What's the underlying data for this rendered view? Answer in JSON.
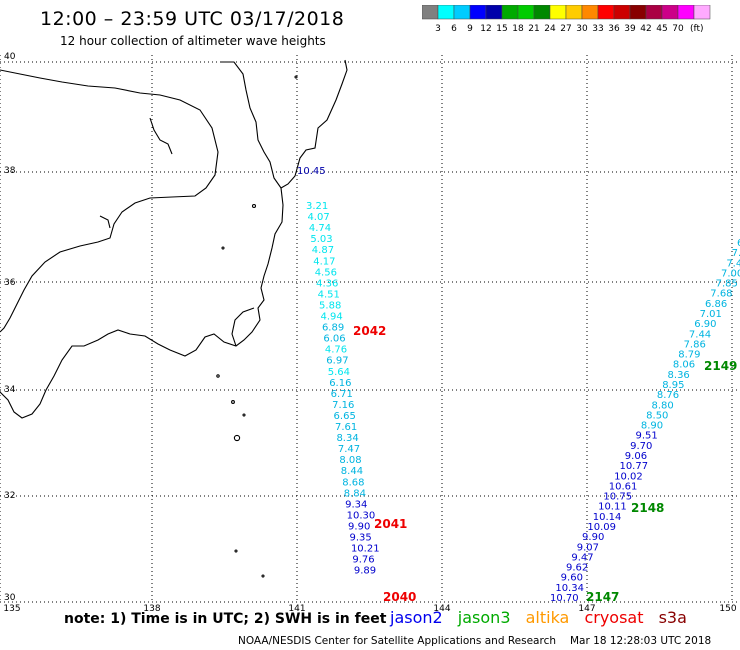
{
  "header": {
    "title": "12:00 – 23:59 UTC 03/17/2018",
    "subtitle": "12 hour collection of altimeter wave heights"
  },
  "colorbar": {
    "swatches": [
      "#808080",
      "#00ffff",
      "#00ccff",
      "#0000ff",
      "#0000aa",
      "#00aa00",
      "#00cc00",
      "#008800",
      "#ffff00",
      "#ffcc00",
      "#ff8800",
      "#ff0000",
      "#cc0000",
      "#880000",
      "#aa0044",
      "#cc0088",
      "#ff00ff",
      "#ffaaff"
    ],
    "ticks": [
      "3",
      "6",
      "9",
      "12",
      "15",
      "18",
      "21",
      "24",
      "27",
      "30",
      "33",
      "36",
      "39",
      "42",
      "45",
      "70"
    ],
    "unit": "(ft)"
  },
  "axes": {
    "lon_labels": [
      "135",
      "138",
      "141",
      "144",
      "147",
      "150"
    ],
    "lat_labels": [
      "40",
      "38",
      "36",
      "34",
      "32",
      "30"
    ]
  },
  "tracks": {
    "west": [
      {
        "v": "10.45",
        "c": "#0000aa"
      },
      {
        "v": "3.21",
        "c": "#00e5ee"
      },
      {
        "v": "4.07",
        "c": "#00e5ee"
      },
      {
        "v": "4.74",
        "c": "#00e5ee"
      },
      {
        "v": "5.03",
        "c": "#00e5ee"
      },
      {
        "v": "4.87",
        "c": "#00e5ee"
      },
      {
        "v": "4.17",
        "c": "#00e5ee"
      },
      {
        "v": "4.56",
        "c": "#00e5ee"
      },
      {
        "v": "4.36",
        "c": "#00e5ee"
      },
      {
        "v": "4.51",
        "c": "#00e5ee"
      },
      {
        "v": "5.88",
        "c": "#00e5ee"
      },
      {
        "v": "4.94",
        "c": "#00e5ee"
      },
      {
        "v": "6.89",
        "c": "#00b4e0"
      },
      {
        "v": "6.06",
        "c": "#00b4e0"
      },
      {
        "v": "4.76",
        "c": "#00e5ee"
      },
      {
        "v": "6.97",
        "c": "#00b4e0"
      },
      {
        "v": "5.64",
        "c": "#00e5ee"
      },
      {
        "v": "6.16",
        "c": "#00b4e0"
      },
      {
        "v": "6.71",
        "c": "#00b4e0"
      },
      {
        "v": "7.16",
        "c": "#00b4e0"
      },
      {
        "v": "6.65",
        "c": "#00b4e0"
      },
      {
        "v": "7.61",
        "c": "#00b4e0"
      },
      {
        "v": "8.34",
        "c": "#00b4e0"
      },
      {
        "v": "7.47",
        "c": "#00b4e0"
      },
      {
        "v": "8.08",
        "c": "#00b4e0"
      },
      {
        "v": "8.44",
        "c": "#00b4e0"
      },
      {
        "v": "8.68",
        "c": "#00b4e0"
      },
      {
        "v": "8.84",
        "c": "#00b4e0"
      },
      {
        "v": "9.34",
        "c": "#0000cc"
      },
      {
        "v": "10.30",
        "c": "#0000cc"
      },
      {
        "v": "9.90",
        "c": "#0000cc"
      },
      {
        "v": "9.35",
        "c": "#0000cc"
      },
      {
        "v": "10.21",
        "c": "#0000cc"
      },
      {
        "v": "9.76",
        "c": "#0000cc"
      },
      {
        "v": "9.89",
        "c": "#0000cc"
      }
    ],
    "east": [
      {
        "v": "6",
        "c": "#00b4e0"
      },
      {
        "v": "7.",
        "c": "#00b4e0"
      },
      {
        "v": "7.4",
        "c": "#00b4e0"
      },
      {
        "v": "7.00",
        "c": "#00b4e0"
      },
      {
        "v": "7.85",
        "c": "#00b4e0"
      },
      {
        "v": "7.68",
        "c": "#00b4e0"
      },
      {
        "v": "6.86",
        "c": "#00b4e0"
      },
      {
        "v": "7.01",
        "c": "#00b4e0"
      },
      {
        "v": "6.90",
        "c": "#00b4e0"
      },
      {
        "v": "7.44",
        "c": "#00b4e0"
      },
      {
        "v": "7.86",
        "c": "#00b4e0"
      },
      {
        "v": "8.79",
        "c": "#00b4e0"
      },
      {
        "v": "8.06",
        "c": "#00b4e0"
      },
      {
        "v": "8.36",
        "c": "#00b4e0"
      },
      {
        "v": "8.95",
        "c": "#00b4e0"
      },
      {
        "v": "8.76",
        "c": "#00b4e0"
      },
      {
        "v": "8.80",
        "c": "#00b4e0"
      },
      {
        "v": "8.50",
        "c": "#00b4e0"
      },
      {
        "v": "8.90",
        "c": "#00b4e0"
      },
      {
        "v": "9.51",
        "c": "#0000cc"
      },
      {
        "v": "9.70",
        "c": "#0000cc"
      },
      {
        "v": "9.06",
        "c": "#0000cc"
      },
      {
        "v": "10.77",
        "c": "#0000cc"
      },
      {
        "v": "10.02",
        "c": "#0000cc"
      },
      {
        "v": "10.61",
        "c": "#0000cc"
      },
      {
        "v": "10.75",
        "c": "#0000cc"
      },
      {
        "v": "10.11",
        "c": "#0000cc"
      },
      {
        "v": "10.14",
        "c": "#0000cc"
      },
      {
        "v": "10.09",
        "c": "#0000cc"
      },
      {
        "v": "9.90",
        "c": "#0000cc"
      },
      {
        "v": "9.07",
        "c": "#0000cc"
      },
      {
        "v": "9.47",
        "c": "#0000cc"
      },
      {
        "v": "9.62",
        "c": "#0000cc"
      },
      {
        "v": "9.60",
        "c": "#0000cc"
      },
      {
        "v": "10.34",
        "c": "#0000cc"
      },
      {
        "v": "10.70",
        "c": "#0000cc"
      }
    ]
  },
  "time_labels": [
    {
      "text": "2042",
      "color": "#ee0000"
    },
    {
      "text": "2041",
      "color": "#ee0000"
    },
    {
      "text": "2040",
      "color": "#ee0000"
    },
    {
      "text": "2149",
      "color": "#008800"
    },
    {
      "text": "2148",
      "color": "#008800"
    },
    {
      "text": "2147",
      "color": "#008800"
    }
  ],
  "footer": {
    "note": "note: 1) Time is in UTC; 2) SWH is in feet",
    "satellites": [
      {
        "name": "jason2",
        "color": "#0000ee"
      },
      {
        "name": "jason3",
        "color": "#00aa00"
      },
      {
        "name": "altika",
        "color": "#ff9900"
      },
      {
        "name": "cryosat",
        "color": "#ee0000"
      },
      {
        "name": "s3a",
        "color": "#880000"
      }
    ],
    "credit": "NOAA/NESDIS Center for Satellite Applications and Research",
    "timestamp": "Mar 18 12:28:03 UTC 2018"
  }
}
